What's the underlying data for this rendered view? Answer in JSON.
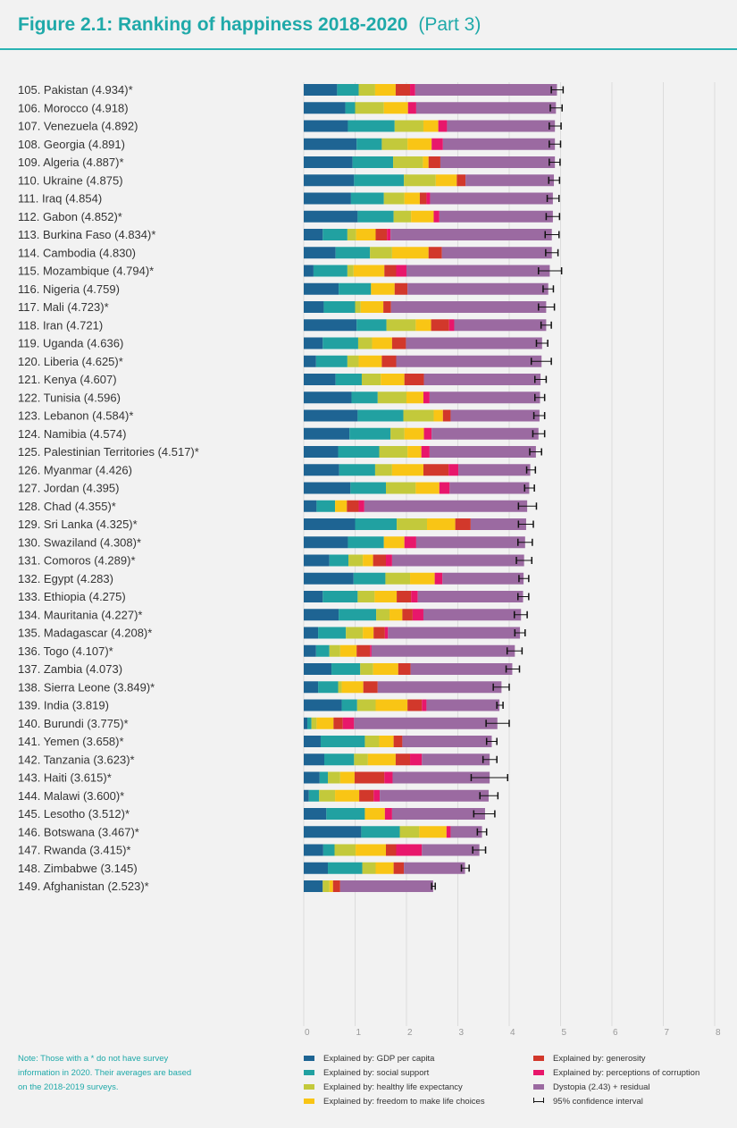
{
  "header": {
    "title": "Figure 2.1: Ranking of happiness 2018-2020",
    "part": "(Part 3)"
  },
  "note": "Note: Those with a * do not have survey information in 2020. Their averages are based on the 2018-2019 surveys.",
  "legend": {
    "items": [
      {
        "label": "Explained by: GDP per capita",
        "color": "#1e6493"
      },
      {
        "label": "Explained by: social support",
        "color": "#21a1a1"
      },
      {
        "label": "Explained by: healthy life expectancy",
        "color": "#c3c93b"
      },
      {
        "label": "Explained by: freedom to make life choices",
        "color": "#f9c515"
      },
      {
        "label": "Explained by: generosity",
        "color": "#d2382b"
      },
      {
        "label": "Explained by: perceptions of corruption",
        "color": "#e8176b"
      },
      {
        "label": "Dystopia (2.43) + residual",
        "color": "#9b6aa1"
      },
      {
        "label": "95% confidence interval",
        "color": "#111111"
      }
    ]
  },
  "chart_data": {
    "type": "bar",
    "orientation": "horizontal",
    "stacked": true,
    "xlim": [
      0,
      8
    ],
    "x_ticks": [
      "0",
      "1",
      "2",
      "3",
      "4",
      "5",
      "6",
      "7",
      "8"
    ],
    "categories": [
      "105. Pakistan (4.934)*",
      "106. Morocco (4.918)",
      "107. Venezuela (4.892)",
      "108. Georgia (4.891)",
      "109. Algeria (4.887)*",
      "110. Ukraine (4.875)",
      "111. Iraq (4.854)",
      "112. Gabon (4.852)*",
      "113. Burkina Faso (4.834)*",
      "114. Cambodia (4.830)",
      "115. Mozambique (4.794)*",
      "116. Nigeria (4.759)",
      "117. Mali (4.723)*",
      "118. Iran (4.721)",
      "119. Uganda (4.636)",
      "120. Liberia (4.625)*",
      "121. Kenya (4.607)",
      "122. Tunisia (4.596)",
      "123. Lebanon (4.584)*",
      "124. Namibia (4.574)",
      "125. Palestinian Territories (4.517)*",
      "126. Myanmar (4.426)",
      "127. Jordan (4.395)",
      "128. Chad (4.355)*",
      "129. Sri Lanka (4.325)*",
      "130. Swaziland (4.308)*",
      "131. Comoros (4.289)*",
      "132. Egypt (4.283)",
      "133. Ethiopia (4.275)",
      "134. Mauritania (4.227)*",
      "135. Madagascar (4.208)*",
      "136. Togo (4.107)*",
      "137. Zambia (4.073)",
      "138. Sierra Leone (3.849)*",
      "139. India (3.819)",
      "140. Burundi (3.775)*",
      "141. Yemen (3.658)*",
      "142. Tanzania (3.623)*",
      "143. Haiti (3.615)*",
      "144. Malawi (3.600)*",
      "145. Lesotho (3.512)*",
      "146. Botswana (3.467)*",
      "147. Rwanda (3.415)*",
      "148. Zimbabwe (3.145)",
      "149. Afghanistan (2.523)*"
    ],
    "series": [
      {
        "name": "Explained by: GDP per capita",
        "color": "#1e6493",
        "values": [
          0.65,
          0.81,
          0.86,
          1.03,
          0.95,
          0.98,
          0.92,
          1.05,
          0.37,
          0.62,
          0.19,
          0.68,
          0.39,
          1.03,
          0.37,
          0.24,
          0.62,
          0.93,
          1.05,
          0.89,
          0.67,
          0.69,
          0.91,
          0.25,
          1.0,
          0.86,
          0.5,
          0.97,
          0.37,
          0.68,
          0.28,
          0.24,
          0.54,
          0.28,
          0.74,
          0.07,
          0.33,
          0.4,
          0.31,
          0.1,
          0.44,
          1.12,
          0.38,
          0.47,
          0.37
        ]
      },
      {
        "name": "Explained by: social support",
        "color": "#21a1a1",
        "values": [
          0.42,
          0.19,
          0.91,
          0.49,
          0.79,
          0.97,
          0.64,
          0.7,
          0.48,
          0.67,
          0.66,
          0.63,
          0.61,
          0.58,
          0.69,
          0.61,
          0.51,
          0.51,
          0.89,
          0.8,
          0.8,
          0.7,
          0.69,
          0.36,
          0.81,
          0.7,
          0.37,
          0.62,
          0.68,
          0.73,
          0.54,
          0.26,
          0.56,
          0.39,
          0.3,
          0.08,
          0.86,
          0.58,
          0.16,
          0.2,
          0.75,
          0.75,
          0.22,
          0.67,
          0.0
        ]
      },
      {
        "name": "Explained by: healthy life expectancy",
        "color": "#c3c93b",
        "values": [
          0.32,
          0.56,
          0.56,
          0.5,
          0.58,
          0.62,
          0.4,
          0.34,
          0.17,
          0.43,
          0.12,
          0.0,
          0.11,
          0.57,
          0.27,
          0.22,
          0.37,
          0.56,
          0.59,
          0.27,
          0.55,
          0.33,
          0.58,
          0.0,
          0.59,
          0.0,
          0.28,
          0.48,
          0.33,
          0.26,
          0.33,
          0.21,
          0.25,
          0.07,
          0.36,
          0.1,
          0.28,
          0.27,
          0.24,
          0.31,
          0.0,
          0.38,
          0.41,
          0.26,
          0.13
        ]
      },
      {
        "name": "Explained by: freedom to make life choices",
        "color": "#f9c515",
        "values": [
          0.4,
          0.47,
          0.29,
          0.47,
          0.11,
          0.41,
          0.3,
          0.44,
          0.38,
          0.71,
          0.6,
          0.46,
          0.44,
          0.3,
          0.39,
          0.45,
          0.46,
          0.33,
          0.18,
          0.38,
          0.27,
          0.61,
          0.46,
          0.23,
          0.55,
          0.4,
          0.2,
          0.48,
          0.43,
          0.25,
          0.21,
          0.32,
          0.49,
          0.42,
          0.62,
          0.33,
          0.28,
          0.54,
          0.28,
          0.47,
          0.39,
          0.53,
          0.59,
          0.35,
          0.07
        ]
      },
      {
        "name": "Explained by: generosity",
        "color": "#d2382b",
        "values": [
          0.28,
          0.0,
          0.0,
          0.0,
          0.23,
          0.17,
          0.13,
          0.0,
          0.22,
          0.26,
          0.23,
          0.25,
          0.15,
          0.35,
          0.27,
          0.28,
          0.38,
          0.0,
          0.15,
          0.0,
          0.0,
          0.49,
          0.0,
          0.23,
          0.3,
          0.0,
          0.25,
          0.0,
          0.28,
          0.2,
          0.22,
          0.26,
          0.24,
          0.28,
          0.28,
          0.18,
          0.17,
          0.28,
          0.58,
          0.28,
          0.0,
          0.0,
          0.2,
          0.2,
          0.14
        ]
      },
      {
        "name": "Explained by: perceptions of corruption",
        "color": "#e8176b",
        "values": [
          0.1,
          0.16,
          0.17,
          0.22,
          0.0,
          0.0,
          0.07,
          0.11,
          0.07,
          0.0,
          0.2,
          0.0,
          0.0,
          0.1,
          0.0,
          0.0,
          0.0,
          0.12,
          0.0,
          0.15,
          0.16,
          0.19,
          0.2,
          0.11,
          0.0,
          0.23,
          0.12,
          0.15,
          0.13,
          0.21,
          0.06,
          0.03,
          0.0,
          0.0,
          0.09,
          0.22,
          0.0,
          0.23,
          0.16,
          0.12,
          0.14,
          0.08,
          0.5,
          0.0,
          0.0
        ]
      },
      {
        "name": "Dystopia (2.43) + residual",
        "color": "#9b6aa1",
        "values": [
          2.76,
          2.72,
          2.1,
          2.18,
          2.23,
          1.72,
          2.39,
          2.21,
          3.14,
          2.14,
          2.79,
          2.74,
          3.02,
          1.79,
          2.65,
          2.83,
          2.27,
          2.15,
          1.73,
          2.08,
          2.07,
          1.4,
          1.55,
          3.17,
          1.08,
          2.12,
          2.57,
          1.58,
          2.05,
          1.9,
          2.57,
          2.79,
          1.98,
          2.41,
          1.42,
          2.79,
          1.74,
          1.32,
          1.89,
          2.12,
          1.81,
          0.61,
          1.12,
          1.19,
          1.81
        ]
      }
    ],
    "ci_low": [
      4.82,
      4.8,
      4.78,
      4.78,
      4.78,
      4.77,
      4.74,
      4.72,
      4.7,
      4.71,
      4.57,
      4.66,
      4.57,
      4.62,
      4.53,
      4.43,
      4.5,
      4.5,
      4.48,
      4.46,
      4.4,
      4.34,
      4.3,
      4.18,
      4.18,
      4.17,
      4.14,
      4.19,
      4.17,
      4.1,
      4.11,
      3.96,
      3.94,
      3.69,
      3.76,
      3.55,
      3.56,
      3.49,
      3.26,
      3.43,
      3.31,
      3.38,
      3.29,
      3.07,
      2.49
    ],
    "ci_high": [
      5.05,
      5.03,
      5.01,
      5.0,
      4.99,
      4.98,
      4.97,
      4.98,
      4.97,
      4.95,
      5.02,
      4.86,
      4.88,
      4.82,
      4.75,
      4.82,
      4.72,
      4.69,
      4.69,
      4.69,
      4.63,
      4.51,
      4.49,
      4.53,
      4.47,
      4.45,
      4.44,
      4.38,
      4.38,
      4.35,
      4.31,
      4.25,
      4.2,
      4.0,
      3.88,
      4.0,
      3.76,
      3.76,
      3.97,
      3.78,
      3.72,
      3.56,
      3.54,
      3.22,
      2.56
    ],
    "grid": true,
    "legend_position": "bottom"
  }
}
